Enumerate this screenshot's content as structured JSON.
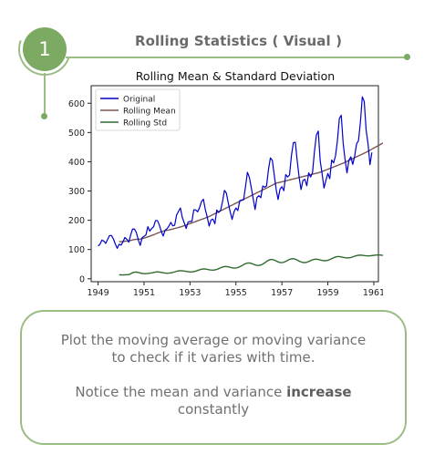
{
  "header": {
    "step_number": "1",
    "title": "Rolling Statistics ( Visual )"
  },
  "note": {
    "line1": "Plot the moving average or moving variance",
    "line2": "to check if it varies with time.",
    "line3_prefix": "Notice the mean and variance ",
    "line3_bold": "increase",
    "line4": "constantly"
  },
  "chart_data": {
    "type": "line",
    "title": "Rolling Mean & Standard Deviation",
    "xlabel": "",
    "ylabel": "",
    "xlim": [
      1948.7,
      1961.2
    ],
    "ylim": [
      -10,
      660
    ],
    "x_ticks": [
      1949,
      1951,
      1953,
      1955,
      1957,
      1959,
      1961
    ],
    "y_ticks": [
      0,
      100,
      200,
      300,
      400,
      500,
      600
    ],
    "grid": false,
    "legend_position": "top-left",
    "x_start": 1949.0,
    "x_step": 0.08333,
    "series": [
      {
        "name": "Original",
        "color": "#0000cc",
        "values": [
          112,
          118,
          132,
          129,
          121,
          135,
          148,
          148,
          136,
          119,
          104,
          118,
          115,
          126,
          141,
          135,
          125,
          149,
          170,
          170,
          158,
          133,
          114,
          140,
          145,
          150,
          178,
          163,
          172,
          178,
          199,
          199,
          184,
          162,
          146,
          166,
          171,
          180,
          193,
          181,
          183,
          218,
          230,
          242,
          209,
          191,
          172,
          194,
          196,
          196,
          236,
          235,
          229,
          243,
          264,
          272,
          237,
          211,
          180,
          201,
          204,
          188,
          235,
          227,
          234,
          264,
          302,
          293,
          259,
          229,
          203,
          229,
          242,
          233,
          267,
          269,
          270,
          315,
          364,
          347,
          312,
          274,
          237,
          278,
          284,
          277,
          317,
          313,
          318,
          374,
          413,
          405,
          355,
          306,
          271,
          306,
          315,
          301,
          356,
          348,
          355,
          422,
          465,
          467,
          404,
          347,
          305,
          336,
          340,
          318,
          362,
          348,
          363,
          435,
          491,
          505,
          404,
          359,
          310,
          337,
          360,
          342,
          406,
          396,
          420,
          472,
          548,
          559,
          463,
          407,
          362,
          405,
          417,
          391,
          419,
          461,
          472,
          535,
          622,
          606,
          508,
          461,
          390,
          432
        ]
      },
      {
        "name": "Rolling Mean",
        "color": "#7a5555",
        "start_index": 11,
        "values": [
          126.7,
          126.9,
          127.6,
          128.3,
          128.8,
          129.8,
          131.0,
          132.8,
          134.2,
          134.7,
          135.2,
          135.8,
          137.0,
          138.8,
          140.9,
          143.2,
          145.6,
          148.2,
          150.2,
          153.2,
          155.9,
          158.3,
          160.8,
          162.8,
          164.4,
          165.8,
          166.6,
          168.7,
          169.8,
          171.9,
          173.5,
          175.2,
          177.2,
          179.2,
          181.6,
          183.8,
          186.2,
          188.8,
          190.9,
          193.4,
          195.9,
          198.2,
          200.8,
          202.8,
          205.2,
          207.8,
          210.2,
          212.8,
          216.1,
          219.3,
          222.6,
          225.8,
          229.1,
          232.3,
          235.6,
          238.8,
          242.1,
          245.3,
          248.6,
          251.8,
          255.1,
          258.3,
          261.6,
          264.8,
          268.1,
          271.3,
          274.6,
          277.8,
          281.1,
          284.3,
          287.6,
          290.8,
          294.1,
          297.3,
          300.6,
          303.8,
          307.1,
          310.3,
          313.6,
          316.8,
          320.1,
          323.3,
          326.6,
          328.2,
          329.8,
          331.5,
          333.1,
          334.7,
          336.3,
          338.0,
          339.6,
          341.2,
          342.8,
          344.5,
          346.1,
          347.7,
          349.3,
          351.0,
          352.6,
          354.2,
          355.8,
          357.5,
          359.1,
          360.7,
          362.3,
          364.0,
          366.6,
          369.2,
          371.8,
          374.4,
          377.0,
          379.6,
          382.2,
          384.8,
          387.4,
          390.0,
          392.6,
          395.2,
          398.3,
          401.4,
          404.5,
          407.6,
          410.7,
          413.8,
          416.9,
          420.0,
          423.1,
          426.2,
          429.3,
          432.4,
          436.0,
          439.6,
          443.2,
          446.8,
          450.4,
          454.0,
          457.6,
          461.2,
          464.8,
          468.4,
          472.0,
          475.6
        ]
      },
      {
        "name": "Rolling Std",
        "color": "#2f6b2f",
        "start_index": 11,
        "values": [
          13.7,
          13.4,
          13.2,
          13.7,
          13.9,
          14.3,
          17.0,
          20.7,
          22.6,
          22.8,
          21.5,
          19.8,
          18.1,
          17.6,
          17.6,
          18.1,
          18.9,
          20.0,
          21.4,
          22.9,
          23.6,
          23.0,
          21.8,
          20.4,
          19.4,
          18.9,
          19.3,
          20.2,
          21.6,
          23.5,
          25.5,
          27.0,
          27.7,
          27.2,
          26.3,
          25.2,
          24.1,
          23.4,
          23.5,
          24.4,
          26.1,
          28.3,
          30.6,
          32.6,
          33.6,
          33.3,
          32.2,
          30.8,
          29.8,
          29.6,
          30.4,
          32.1,
          34.6,
          37.5,
          40.1,
          41.7,
          42.0,
          40.9,
          39.1,
          37.4,
          36.5,
          36.8,
          38.3,
          40.9,
          44.4,
          48.3,
          51.6,
          53.7,
          54.1,
          52.6,
          50.0,
          47.4,
          45.8,
          45.6,
          47.0,
          50.1,
          54.3,
          59.1,
          63.3,
          65.7,
          66.0,
          64.0,
          60.7,
          57.5,
          55.6,
          55.2,
          56.6,
          59.3,
          62.8,
          66.2,
          68.3,
          68.7,
          67.1,
          64.1,
          60.5,
          57.4,
          55.7,
          55.4,
          56.6,
          59.0,
          62.0,
          64.8,
          66.5,
          67.0,
          66.1,
          64.4,
          62.7,
          61.7,
          61.8,
          63.1,
          65.6,
          68.8,
          71.9,
          74.4,
          75.8,
          75.9,
          74.8,
          73.3,
          71.9,
          71.3,
          71.6,
          72.9,
          74.9,
          77.2,
          79.2,
          80.4,
          80.8,
          80.2,
          79.3,
          78.6,
          78.3,
          78.5,
          79.2,
          80.1,
          81.0,
          81.4,
          81.2,
          80.6,
          79.9,
          79.2,
          79.0,
          79.1,
          79.5,
          80.0
        ]
      }
    ]
  }
}
